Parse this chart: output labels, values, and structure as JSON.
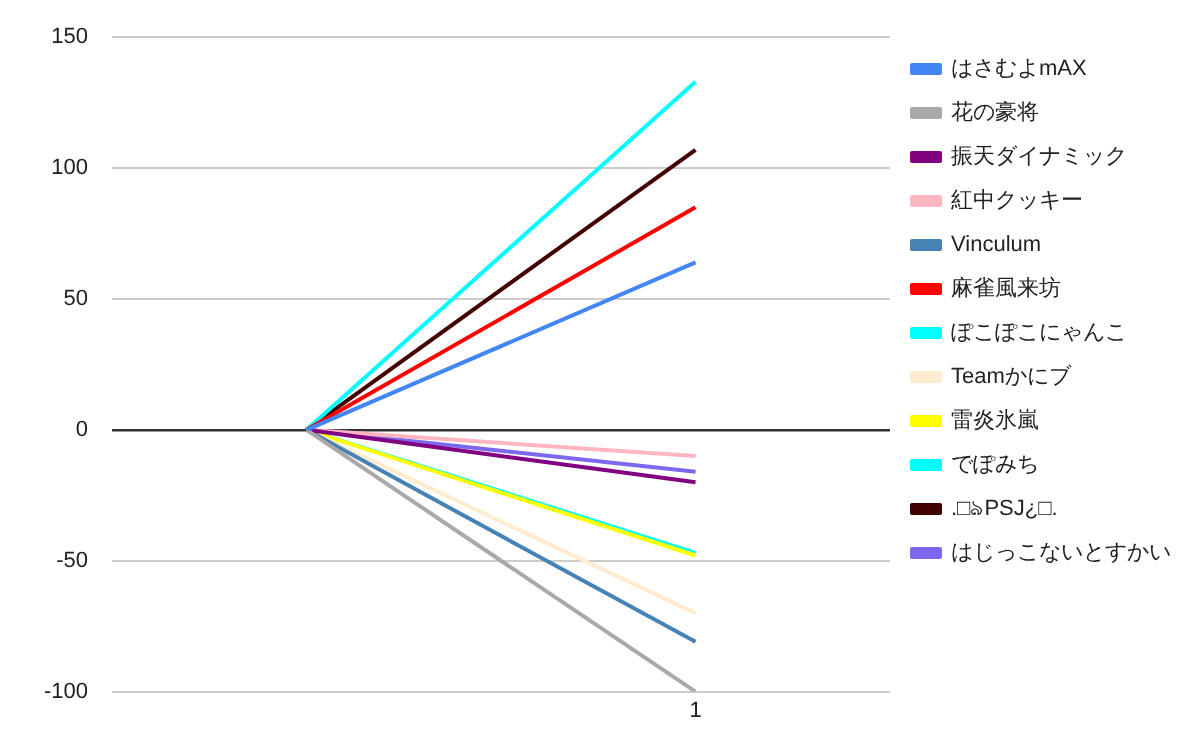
{
  "chart_data": {
    "type": "line",
    "categories": [
      null,
      "1"
    ],
    "ylim": [
      -100,
      150
    ],
    "yticks": [
      -100,
      -50,
      0,
      50,
      100,
      150
    ],
    "grid": "y",
    "legend": "right",
    "marker": "none",
    "series": [
      {
        "name": "はさむよmAX",
        "color": "#4285f4",
        "values": [
          0,
          64
        ]
      },
      {
        "name": "花の豪将",
        "color": "#a9a9a9",
        "values": [
          0,
          -100
        ]
      },
      {
        "name": "振天ダイナミック",
        "color": "#800080",
        "values": [
          0,
          -20
        ]
      },
      {
        "name": "紅中クッキー",
        "color": "#ffb6c1",
        "values": [
          0,
          -10
        ]
      },
      {
        "name": "Vinculum",
        "color": "#4682b4",
        "values": [
          0,
          -81
        ]
      },
      {
        "name": "麻雀風来坊",
        "color": "#ff0000",
        "values": [
          0,
          85
        ]
      },
      {
        "name": "ぽこぽこにゃんこ",
        "color": "#00ffff",
        "values": [
          0,
          133
        ]
      },
      {
        "name": "Teamかにブ",
        "color": "#ffebcd",
        "values": [
          0,
          -70
        ]
      },
      {
        "name": "雷炎氷嵐",
        "color": "#ffff00",
        "values": [
          0,
          -48
        ]
      },
      {
        "name": "でぽみち",
        "color": "#00ffff",
        "values": [
          0,
          -47
        ]
      },
      {
        "name": ".□ঌPSJ¿□.",
        "color": "#420000",
        "values": [
          0,
          107
        ]
      },
      {
        "name": "はじっこないとすかい",
        "color": "#7b68ee",
        "values": [
          0,
          -16
        ]
      }
    ]
  }
}
